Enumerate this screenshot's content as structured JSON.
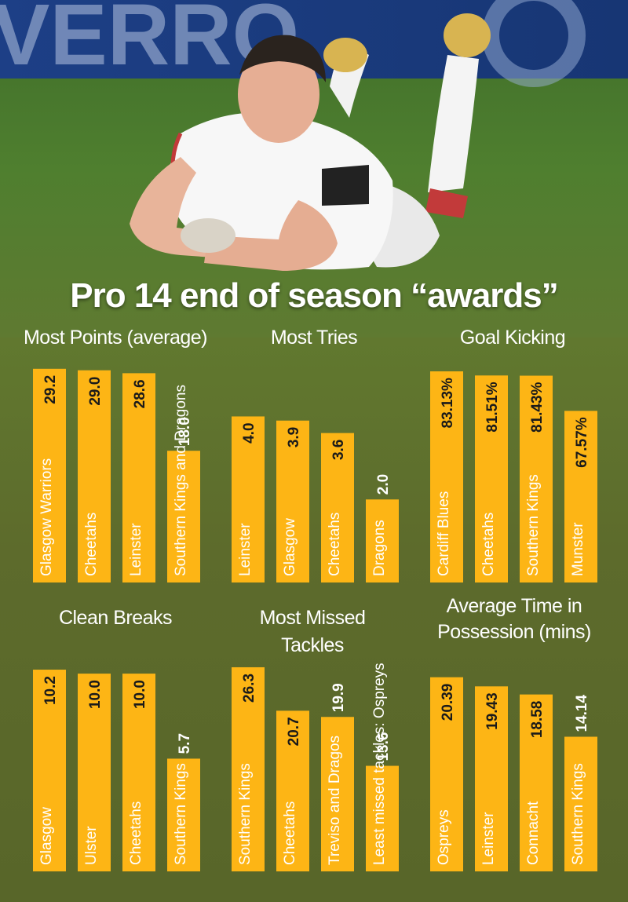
{
  "header": {
    "title": "Pro 14 end of season “awards”"
  },
  "photo": {
    "banner_text": "VERRO"
  },
  "colors": {
    "bar": "#fdb515",
    "background": "#5f7a31",
    "text": "#ffffff"
  },
  "chart_data": [
    {
      "type": "bar",
      "title": "Most Points (average)",
      "categories": [
        "Glasgow Warriors",
        "Cheetahs",
        "Leinster",
        "Southern Kings and Dragons"
      ],
      "values": [
        29.2,
        29.0,
        28.6,
        18.0
      ],
      "value_labels": [
        "29.2",
        "29.0",
        "28.6",
        "18.0"
      ],
      "ylim": [
        0,
        29.5
      ]
    },
    {
      "type": "bar",
      "title": "Most Tries",
      "categories": [
        "Leinster",
        "Glasgow",
        "Cheetahs",
        "Dragons"
      ],
      "values": [
        4.0,
        3.9,
        3.6,
        2.0
      ],
      "value_labels": [
        "4.0",
        "3.9",
        "3.6",
        "2.0"
      ],
      "ylim": [
        0,
        5.2
      ]
    },
    {
      "type": "bar",
      "title": "Goal Kicking",
      "categories": [
        "Cardiff Blues",
        "Cheetahs",
        "Southern Kings",
        "Munster"
      ],
      "values": [
        83.13,
        81.51,
        81.43,
        67.57
      ],
      "value_labels": [
        "83.13%",
        "81.51%",
        "81.43%",
        "67.57%"
      ],
      "ylim": [
        0,
        85
      ]
    },
    {
      "type": "bar",
      "title": "Clean Breaks",
      "categories": [
        "Glasgow",
        "Ulster",
        "Cheetahs",
        "Southern Kings"
      ],
      "values": [
        10.2,
        10.0,
        10.0,
        5.7
      ],
      "value_labels": [
        "10.2",
        "10.0",
        "10.0",
        "5.7"
      ],
      "ylim": [
        0,
        10.4
      ]
    },
    {
      "type": "bar",
      "title": "Most Missed Tackles",
      "categories": [
        "Southern Kings",
        "Cheetahs",
        "Treviso and Dragos",
        "Least missed tackles: Ospreys"
      ],
      "values": [
        26.3,
        20.7,
        19.9,
        13.6
      ],
      "value_labels": [
        "26.3",
        "20.7",
        "19.9",
        "13.6"
      ],
      "ylim": [
        0,
        26.5
      ]
    },
    {
      "type": "bar",
      "title": "Average Time in Possession (mins)",
      "categories": [
        "Ospreys",
        "Leinster",
        "Connacht",
        "Southern Kings"
      ],
      "values": [
        20.39,
        19.43,
        18.58,
        14.14
      ],
      "value_labels": [
        "20.39",
        "19.43",
        "18.58",
        "14.14"
      ],
      "ylim": [
        0,
        21.6
      ]
    }
  ]
}
